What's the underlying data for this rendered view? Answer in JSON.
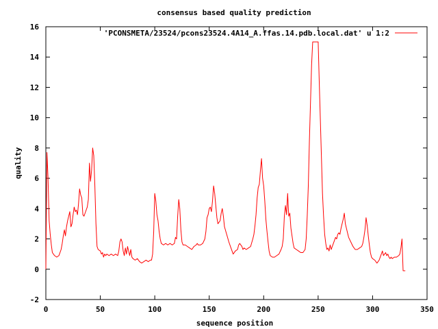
{
  "chart_data": {
    "type": "line",
    "title": "consensus based quality prediction",
    "xlabel": "sequence position",
    "ylabel": "quality",
    "xlim": [
      0,
      350
    ],
    "ylim": [
      -2,
      16
    ],
    "x_ticks": [
      "0",
      "50",
      "100",
      "150",
      "200",
      "250",
      "300",
      "350"
    ],
    "y_ticks": [
      "-2",
      "0",
      "2",
      "4",
      "6",
      "8",
      "10",
      "12",
      "14",
      "16"
    ],
    "grid": false,
    "legend_position": "top-right",
    "series": [
      {
        "name": "'PCONSMETA/23524/pcons23524.4A14_A.ffas.14.pdb.local.dat' u 1:2",
        "color": "#ff0000",
        "points": [
          [
            0,
            0.0
          ],
          [
            0.5,
            3.9
          ],
          [
            1,
            7.7
          ],
          [
            2,
            6.0
          ],
          [
            3,
            3.2
          ],
          [
            4,
            2.3
          ],
          [
            5,
            1.6
          ],
          [
            6,
            1.1
          ],
          [
            8,
            0.9
          ],
          [
            10,
            0.8
          ],
          [
            12,
            0.9
          ],
          [
            14,
            1.3
          ],
          [
            15,
            1.7
          ],
          [
            16,
            2.2
          ],
          [
            17,
            2.6
          ],
          [
            18,
            2.2
          ],
          [
            19,
            2.8
          ],
          [
            20,
            3.2
          ],
          [
            21,
            3.5
          ],
          [
            22,
            3.8
          ],
          [
            23,
            2.8
          ],
          [
            24,
            3.0
          ],
          [
            25,
            3.6
          ],
          [
            26,
            4.1
          ],
          [
            27,
            3.8
          ],
          [
            28,
            3.9
          ],
          [
            29,
            3.6
          ],
          [
            30,
            4.3
          ],
          [
            31,
            5.3
          ],
          [
            32,
            4.9
          ],
          [
            33,
            4.7
          ],
          [
            34,
            3.6
          ],
          [
            35,
            3.5
          ],
          [
            36,
            3.7
          ],
          [
            37,
            3.9
          ],
          [
            38,
            4.1
          ],
          [
            39,
            4.6
          ],
          [
            40,
            7.0
          ],
          [
            41,
            5.8
          ],
          [
            42,
            6.5
          ],
          [
            43,
            8.0
          ],
          [
            44,
            7.5
          ],
          [
            45,
            5.5
          ],
          [
            46,
            3.0
          ],
          [
            47,
            1.5
          ],
          [
            48,
            1.3
          ],
          [
            50,
            1.2
          ],
          [
            51,
            1.0
          ],
          [
            52,
            1.1
          ],
          [
            53,
            0.8
          ],
          [
            54,
            1.0
          ],
          [
            55,
            0.9
          ],
          [
            56,
            1.0
          ],
          [
            58,
            0.9
          ],
          [
            60,
            1.0
          ],
          [
            62,
            0.9
          ],
          [
            64,
            1.0
          ],
          [
            66,
            0.9
          ],
          [
            67,
            1.2
          ],
          [
            68,
            1.8
          ],
          [
            69,
            2.0
          ],
          [
            70,
            1.8
          ],
          [
            71,
            1.2
          ],
          [
            72,
            0.9
          ],
          [
            73,
            1.4
          ],
          [
            74,
            1.0
          ],
          [
            75,
            1.5
          ],
          [
            76,
            1.2
          ],
          [
            77,
            0.9
          ],
          [
            78,
            1.3
          ],
          [
            79,
            0.8
          ],
          [
            80,
            0.7
          ],
          [
            82,
            0.6
          ],
          [
            84,
            0.7
          ],
          [
            86,
            0.5
          ],
          [
            88,
            0.4
          ],
          [
            90,
            0.5
          ],
          [
            92,
            0.6
          ],
          [
            94,
            0.5
          ],
          [
            96,
            0.6
          ],
          [
            97,
            0.6
          ],
          [
            98,
            1.0
          ],
          [
            99,
            2.5
          ],
          [
            100,
            5.0
          ],
          [
            101,
            4.5
          ],
          [
            102,
            3.6
          ],
          [
            103,
            3.2
          ],
          [
            104,
            2.5
          ],
          [
            105,
            2.0
          ],
          [
            106,
            1.7
          ],
          [
            108,
            1.6
          ],
          [
            110,
            1.7
          ],
          [
            112,
            1.6
          ],
          [
            114,
            1.7
          ],
          [
            116,
            1.6
          ],
          [
            118,
            1.7
          ],
          [
            119,
            2.1
          ],
          [
            120,
            2.0
          ],
          [
            121,
            3.5
          ],
          [
            122,
            4.6
          ],
          [
            123,
            4.0
          ],
          [
            124,
            2.6
          ],
          [
            125,
            1.8
          ],
          [
            126,
            1.6
          ],
          [
            128,
            1.6
          ],
          [
            130,
            1.5
          ],
          [
            132,
            1.4
          ],
          [
            134,
            1.3
          ],
          [
            136,
            1.5
          ],
          [
            138,
            1.6
          ],
          [
            139,
            1.7
          ],
          [
            140,
            1.6
          ],
          [
            142,
            1.6
          ],
          [
            144,
            1.7
          ],
          [
            146,
            2.0
          ],
          [
            147,
            2.5
          ],
          [
            148,
            3.4
          ],
          [
            149,
            3.6
          ],
          [
            150,
            4.0
          ],
          [
            151,
            4.1
          ],
          [
            152,
            3.8
          ],
          [
            153,
            4.5
          ],
          [
            154,
            5.5
          ],
          [
            155,
            5.0
          ],
          [
            156,
            4.2
          ],
          [
            157,
            3.4
          ],
          [
            158,
            3.0
          ],
          [
            159,
            3.1
          ],
          [
            160,
            3.2
          ],
          [
            161,
            3.7
          ],
          [
            162,
            4.0
          ],
          [
            163,
            3.5
          ],
          [
            164,
            2.8
          ],
          [
            166,
            2.3
          ],
          [
            168,
            1.8
          ],
          [
            170,
            1.4
          ],
          [
            172,
            1.0
          ],
          [
            174,
            1.2
          ],
          [
            176,
            1.3
          ],
          [
            177,
            1.6
          ],
          [
            178,
            1.7
          ],
          [
            179,
            1.6
          ],
          [
            180,
            1.5
          ],
          [
            181,
            1.3
          ],
          [
            182,
            1.4
          ],
          [
            184,
            1.3
          ],
          [
            186,
            1.4
          ],
          [
            188,
            1.5
          ],
          [
            190,
            2.0
          ],
          [
            191,
            2.3
          ],
          [
            192,
            2.9
          ],
          [
            193,
            3.6
          ],
          [
            194,
            4.7
          ],
          [
            195,
            5.4
          ],
          [
            196,
            5.6
          ],
          [
            197,
            6.5
          ],
          [
            198,
            7.3
          ],
          [
            199,
            6.0
          ],
          [
            200,
            5.5
          ],
          [
            201,
            4.5
          ],
          [
            202,
            3.3
          ],
          [
            203,
            2.5
          ],
          [
            204,
            1.8
          ],
          [
            205,
            1.2
          ],
          [
            206,
            0.9
          ],
          [
            208,
            0.8
          ],
          [
            210,
            0.8
          ],
          [
            212,
            0.9
          ],
          [
            214,
            1.0
          ],
          [
            216,
            1.3
          ],
          [
            217,
            1.5
          ],
          [
            218,
            2.0
          ],
          [
            219,
            3.5
          ],
          [
            220,
            4.2
          ],
          [
            221,
            3.6
          ],
          [
            222,
            5.0
          ],
          [
            223,
            3.5
          ],
          [
            224,
            3.7
          ],
          [
            225,
            2.7
          ],
          [
            226,
            2.2
          ],
          [
            227,
            1.7
          ],
          [
            228,
            1.4
          ],
          [
            230,
            1.3
          ],
          [
            232,
            1.2
          ],
          [
            234,
            1.1
          ],
          [
            236,
            1.1
          ],
          [
            238,
            1.3
          ],
          [
            239,
            2.0
          ],
          [
            240,
            3.5
          ],
          [
            241,
            5.5
          ],
          [
            242,
            8.5
          ],
          [
            243,
            11.0
          ],
          [
            244,
            13.5
          ],
          [
            245,
            15.0
          ],
          [
            250,
            15.0
          ],
          [
            251,
            12.5
          ],
          [
            252,
            10.0
          ],
          [
            253,
            7.5
          ],
          [
            254,
            5.0
          ],
          [
            255,
            3.5
          ],
          [
            256,
            2.3
          ],
          [
            257,
            1.7
          ],
          [
            258,
            1.3
          ],
          [
            259,
            1.4
          ],
          [
            260,
            1.2
          ],
          [
            261,
            1.6
          ],
          [
            262,
            1.3
          ],
          [
            263,
            1.5
          ],
          [
            264,
            1.7
          ],
          [
            265,
            1.9
          ],
          [
            266,
            2.1
          ],
          [
            267,
            2.0
          ],
          [
            268,
            2.3
          ],
          [
            269,
            2.4
          ],
          [
            270,
            2.3
          ],
          [
            271,
            2.7
          ],
          [
            272,
            3.0
          ],
          [
            273,
            3.3
          ],
          [
            274,
            3.7
          ],
          [
            275,
            3.0
          ],
          [
            276,
            2.7
          ],
          [
            277,
            2.4
          ],
          [
            278,
            2.1
          ],
          [
            280,
            1.8
          ],
          [
            282,
            1.5
          ],
          [
            284,
            1.3
          ],
          [
            286,
            1.3
          ],
          [
            288,
            1.4
          ],
          [
            290,
            1.5
          ],
          [
            291,
            1.7
          ],
          [
            292,
            2.1
          ],
          [
            293,
            2.6
          ],
          [
            294,
            3.4
          ],
          [
            295,
            2.9
          ],
          [
            296,
            2.2
          ],
          [
            297,
            1.6
          ],
          [
            298,
            1.1
          ],
          [
            299,
            0.8
          ],
          [
            300,
            0.7
          ],
          [
            302,
            0.6
          ],
          [
            304,
            0.4
          ],
          [
            306,
            0.6
          ],
          [
            307,
            0.8
          ],
          [
            308,
            1.0
          ],
          [
            309,
            1.2
          ],
          [
            310,
            0.9
          ],
          [
            311,
            1.0
          ],
          [
            312,
            1.1
          ],
          [
            313,
            0.9
          ],
          [
            314,
            1.0
          ],
          [
            315,
            0.8
          ],
          [
            316,
            0.7
          ],
          [
            317,
            0.8
          ],
          [
            318,
            0.7
          ],
          [
            320,
            0.8
          ],
          [
            322,
            0.8
          ],
          [
            324,
            0.9
          ],
          [
            325,
            1.0
          ],
          [
            326,
            1.4
          ],
          [
            327,
            2.0
          ],
          [
            328,
            -0.1
          ],
          [
            330,
            -0.1
          ]
        ]
      }
    ]
  }
}
